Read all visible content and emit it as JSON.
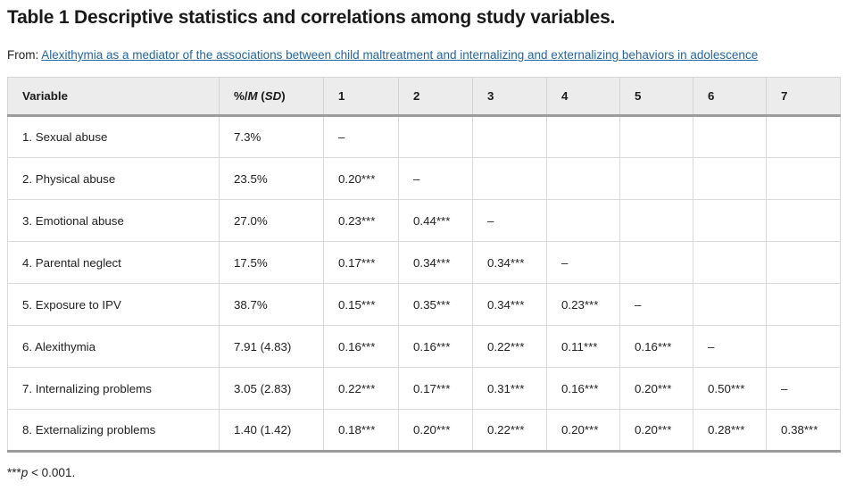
{
  "header": {
    "title": "Table 1 Descriptive statistics and correlations among study variables.",
    "from_label": "From:",
    "link_text": "Alexithymia as a mediator of the associations between child maltreatment and internalizing and externalizing behaviors in adolescence"
  },
  "colors": {
    "link": "#25669e",
    "header_background": "#ececec",
    "cell_border": "#d9d9d9",
    "strong_border": "#9c9c9c"
  },
  "table": {
    "column_headers": [
      {
        "text": "Variable"
      },
      {
        "text": "%/M (SD)",
        "parts": {
          "pre": "%/",
          "m": "M",
          "mid": " (",
          "sd": "SD",
          "post": ")"
        }
      },
      {
        "text": "1"
      },
      {
        "text": "2"
      },
      {
        "text": "3"
      },
      {
        "text": "4"
      },
      {
        "text": "5"
      },
      {
        "text": "6"
      },
      {
        "text": "7"
      }
    ],
    "rows": [
      [
        "1. Sexual abuse",
        "7.3%",
        "–",
        "",
        "",
        "",
        "",
        "",
        ""
      ],
      [
        "2. Physical abuse",
        "23.5%",
        "0.20***",
        "–",
        "",
        "",
        "",
        "",
        ""
      ],
      [
        "3. Emotional abuse",
        "27.0%",
        "0.23***",
        "0.44***",
        "–",
        "",
        "",
        "",
        ""
      ],
      [
        "4. Parental neglect",
        "17.5%",
        "0.17***",
        "0.34***",
        "0.34***",
        "–",
        "",
        "",
        ""
      ],
      [
        "5. Exposure to IPV",
        "38.7%",
        "0.15***",
        "0.35***",
        "0.34***",
        "0.23***",
        "–",
        "",
        ""
      ],
      [
        "6. Alexithymia",
        "7.91 (4.83)",
        "0.16***",
        "0.16***",
        "0.22***",
        "0.11***",
        "0.16***",
        "–",
        ""
      ],
      [
        "7. Internalizing problems",
        "3.05 (2.83)",
        "0.22***",
        "0.17***",
        "0.31***",
        "0.16***",
        "0.20***",
        "0.50***",
        "–"
      ],
      [
        "8. Externalizing problems",
        "1.40 (1.42)",
        "0.18***",
        "0.20***",
        "0.22***",
        "0.20***",
        "0.20***",
        "0.28***",
        "0.38***"
      ]
    ]
  },
  "footnote": {
    "stars": "***",
    "p_symbol": "p",
    "text": " < 0.001."
  }
}
